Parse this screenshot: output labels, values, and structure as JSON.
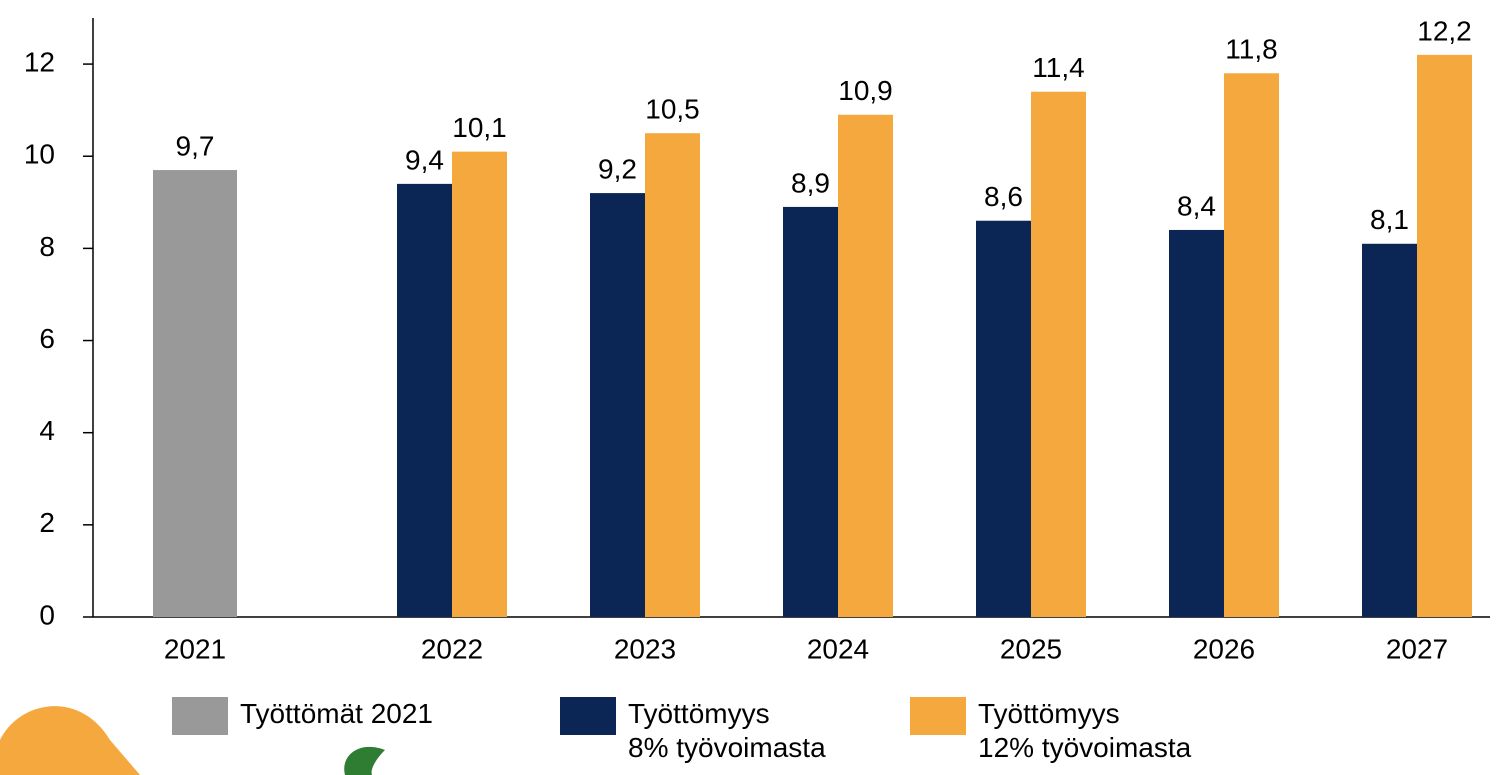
{
  "chart_data": {
    "type": "bar",
    "categories": [
      "2021",
      "2022",
      "2023",
      "2024",
      "2025",
      "2026",
      "2027"
    ],
    "series": [
      {
        "name": "Työttömät 2021",
        "color": "#999999",
        "values": [
          9.7,
          null,
          null,
          null,
          null,
          null,
          null
        ],
        "value_labels": [
          "9,7",
          null,
          null,
          null,
          null,
          null,
          null
        ]
      },
      {
        "name": "Työttömyys\n8% työvoimasta",
        "color": "#0b2554",
        "values": [
          null,
          9.4,
          9.2,
          8.9,
          8.6,
          8.4,
          8.1
        ],
        "value_labels": [
          null,
          "9,4",
          "9,2",
          "8,9",
          "8,6",
          "8,4",
          "8,1"
        ]
      },
      {
        "name": "Työttömyys\n12% työvoimasta",
        "color": "#f4a83d",
        "values": [
          null,
          10.1,
          10.5,
          10.9,
          11.4,
          11.8,
          12.2
        ],
        "value_labels": [
          null,
          "10,1",
          "10,5",
          "10,9",
          "11,4",
          "11,8",
          "12,2"
        ]
      }
    ],
    "ylim": [
      0,
      13
    ],
    "yticks": [
      0,
      2,
      4,
      6,
      8,
      10,
      12
    ],
    "grid": false
  }
}
